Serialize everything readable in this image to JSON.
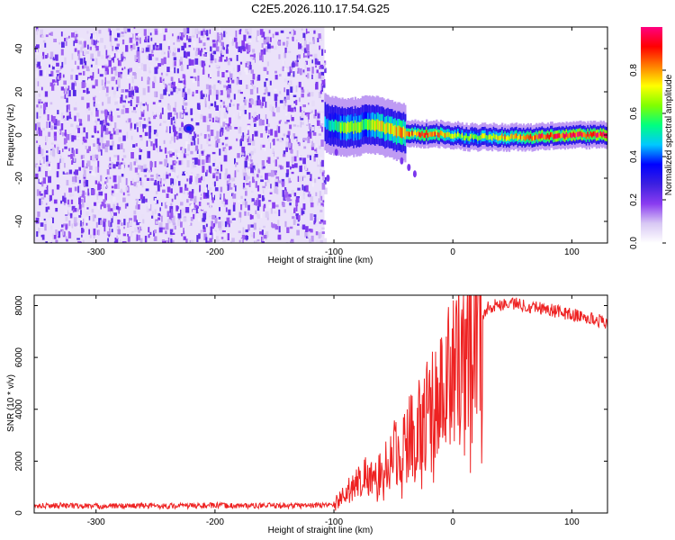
{
  "title": "C2E5.2026.110.17.54.G25",
  "chart_data": [
    {
      "type": "heatmap",
      "title": "C2E5.2026.110.17.54.G25",
      "xlabel": "Height of straight line (km)",
      "ylabel": "Frequency (Hz)",
      "xlim": [
        -352,
        130
      ],
      "ylim": [
        -50,
        50
      ],
      "xticks": [
        -300,
        -200,
        -100,
        0,
        100
      ],
      "yticks": [
        -40,
        -20,
        0,
        20,
        40
      ],
      "colorbar": {
        "label": "Normalized spectral amplitude",
        "range": [
          0,
          1
        ],
        "ticks": [
          0.0,
          0.2,
          0.4,
          0.6,
          0.8
        ],
        "stops": [
          "#ffffff",
          "#d8c8f4",
          "#8a3cf0",
          "#3c20e0",
          "#0000ff",
          "#00c8ff",
          "#00ff80",
          "#80ff00",
          "#ffff00",
          "#ff8000",
          "#ff0000",
          "#ff0080"
        ]
      },
      "noise_region_x": [
        -352,
        -108
      ],
      "ridge": {
        "x": [
          -108,
          -100,
          -90,
          -80,
          -70,
          -60,
          -50,
          -40,
          -30,
          -20,
          -10,
          0,
          10,
          20,
          30,
          40,
          50,
          60,
          70,
          80,
          90,
          100,
          110,
          120,
          130
        ],
        "freq": [
          6,
          4,
          3,
          4,
          5,
          4,
          2,
          1,
          0.5,
          0.5,
          0.5,
          0,
          -1,
          -1,
          -1,
          -1,
          -1,
          -1,
          -1,
          -0.5,
          -0.5,
          0,
          0,
          0,
          0
        ],
        "amplitude": [
          0.45,
          0.6,
          0.7,
          0.65,
          0.7,
          0.75,
          0.8,
          0.85,
          0.9,
          0.95,
          0.85,
          0.75,
          0.7,
          0.72,
          0.75,
          0.8,
          0.82,
          0.85,
          0.95,
          1.0,
          0.95,
          1.0,
          1.0,
          0.98,
          0.95
        ]
      }
    },
    {
      "type": "line",
      "xlabel": "Height of straight line (km)",
      "ylabel": "SNR (10 * v/v)",
      "xlim": [
        -352,
        130
      ],
      "ylim": [
        0,
        8400
      ],
      "xticks": [
        -300,
        -200,
        -100,
        0,
        100
      ],
      "yticks": [
        0,
        2000,
        4000,
        6000,
        8000
      ],
      "color": "#ee2222",
      "series": [
        {
          "x": [
            -352,
            -340,
            -330,
            -320,
            -300,
            -280,
            -260,
            -240,
            -220,
            -200,
            -180,
            -160,
            -140,
            -120,
            -108,
            -100,
            -95,
            -90,
            -85,
            -80,
            -75,
            -70,
            -65,
            -60,
            -55,
            -50,
            -45,
            -40,
            -35,
            -30,
            -25,
            -20,
            -15,
            -10,
            -5,
            0,
            5,
            10,
            15,
            20,
            25,
            30,
            40,
            50,
            60,
            70,
            80,
            90,
            100,
            110,
            120,
            130
          ],
          "values": [
            250,
            280,
            300,
            270,
            260,
            270,
            280,
            270,
            280,
            290,
            280,
            280,
            280,
            290,
            300,
            350,
            600,
            800,
            1000,
            1200,
            1500,
            1400,
            1300,
            1600,
            1900,
            2300,
            2500,
            2700,
            3000,
            3300,
            3700,
            4000,
            4200,
            4600,
            5200,
            5800,
            6200,
            6600,
            7000,
            7400,
            7700,
            7950,
            8050,
            8100,
            8000,
            7950,
            7850,
            7750,
            7650,
            7550,
            7450,
            7350
          ]
        }
      ]
    }
  ]
}
